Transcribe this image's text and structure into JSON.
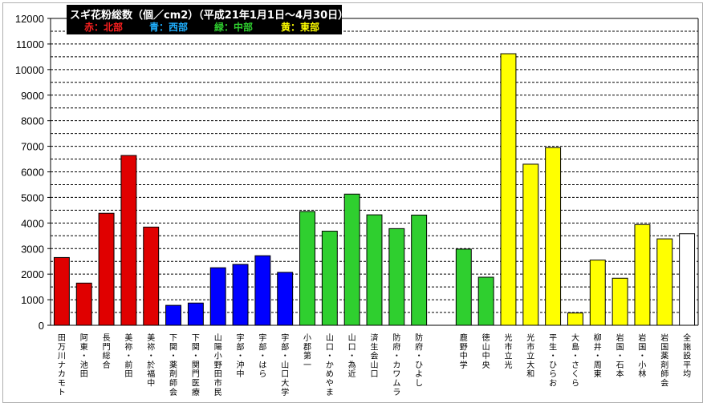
{
  "chart_data": {
    "type": "bar",
    "title": "スギ花粉総数（個／cm2）（平成21年1月1日〜4月30日）",
    "legend": [
      {
        "label": "赤：北部",
        "color": "#e00000"
      },
      {
        "label": "青：西部",
        "color": "#1fb0ff"
      },
      {
        "label": "緑：中部",
        "color": "#2fcf2f"
      },
      {
        "label": "黄：東部",
        "color": "#ffff00"
      }
    ],
    "ylim": [
      0,
      12000
    ],
    "yticks": [
      "0",
      "1000",
      "2000",
      "3000",
      "4000",
      "5000",
      "6000",
      "7000",
      "8000",
      "9000",
      "10000",
      "11000",
      "12000"
    ],
    "grid": "dashed at every 500, solid at 12000",
    "categories": [
      "田万川ナカモト",
      "阿東・池田",
      "長門総合",
      "美祢・前田",
      "美祢・於福中",
      "下関・薬剤師会",
      "下関・関門医療",
      "山陽小野田市民",
      "宇部・沖中",
      "宇部・はら",
      "宇部・山口大学",
      "小郡第一",
      "山口・かめやま",
      "山口・為近",
      "済生会山口",
      "防府・カワムラ",
      "防府・ひよし",
      "",
      "鹿野中学",
      "徳山中央",
      "光市立光",
      "光市立大和",
      "平生・ひらお",
      "大島・さくら",
      "柳井・周東",
      "岩国・石本",
      "岩国・小林",
      "岩国薬剤師会",
      "全施設平均"
    ],
    "values": [
      2650,
      1650,
      4380,
      6640,
      3840,
      780,
      870,
      2250,
      2380,
      2720,
      2070,
      4450,
      3680,
      5130,
      4320,
      3780,
      4310,
      null,
      2980,
      1880,
      10620,
      6300,
      6950,
      480,
      2550,
      1840,
      3940,
      3380,
      3580
    ],
    "colors": [
      "#e00000",
      "#e00000",
      "#e00000",
      "#e00000",
      "#e00000",
      "#0000ff",
      "#0000ff",
      "#0000ff",
      "#0000ff",
      "#0000ff",
      "#0000ff",
      "#2fcf2f",
      "#2fcf2f",
      "#2fcf2f",
      "#2fcf2f",
      "#2fcf2f",
      "#2fcf2f",
      null,
      "#2fcf2f",
      "#2fcf2f",
      "#ffff00",
      "#ffff00",
      "#ffff00",
      "#ffff00",
      "#ffff00",
      "#ffff00",
      "#ffff00",
      "#ffff00",
      "#ffffff"
    ]
  }
}
